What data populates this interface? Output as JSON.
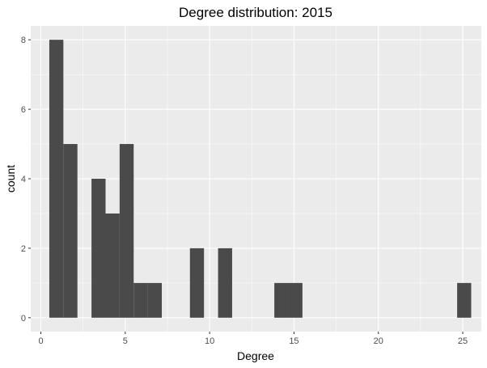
{
  "chart_data": {
    "type": "bar",
    "title": "Degree distribution: 2015",
    "xlabel": "Degree",
    "ylabel": "count",
    "xlim": [
      -0.6,
      26.1
    ],
    "ylim": [
      -0.4,
      8.4
    ],
    "x_ticks": [
      0,
      5,
      10,
      15,
      20,
      25
    ],
    "y_ticks": [
      0,
      2,
      4,
      6,
      8
    ],
    "bin_width": 0.833,
    "bins": [
      {
        "x": 0.917,
        "count": 8
      },
      {
        "x": 1.75,
        "count": 5
      },
      {
        "x": 2.583,
        "count": 0
      },
      {
        "x": 3.417,
        "count": 4
      },
      {
        "x": 4.25,
        "count": 3
      },
      {
        "x": 5.083,
        "count": 5
      },
      {
        "x": 5.917,
        "count": 1
      },
      {
        "x": 6.75,
        "count": 1
      },
      {
        "x": 9.25,
        "count": 2
      },
      {
        "x": 10.917,
        "count": 2
      },
      {
        "x": 14.25,
        "count": 1
      },
      {
        "x": 15.083,
        "count": 1
      },
      {
        "x": 25.083,
        "count": 1
      }
    ],
    "grid": true,
    "colors": {
      "panel_background": "#ebebeb",
      "grid_major": "#ffffff",
      "bar_fill": "#4a4a4a"
    }
  }
}
